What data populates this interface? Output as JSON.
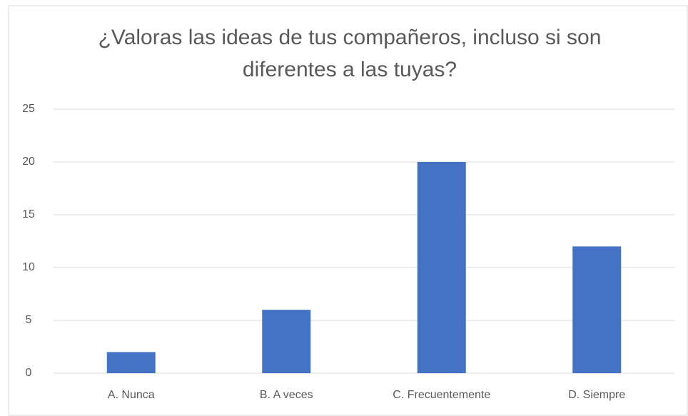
{
  "chart_data": {
    "type": "bar",
    "title": "¿Valoras las ideas de tus compañeros, incluso si son diferentes a las tuyas?",
    "categories": [
      "A. Nunca",
      "B. A veces",
      "C. Frecuentemente",
      "D. Siempre"
    ],
    "values": [
      2,
      6,
      20,
      12
    ],
    "color": "#4472c4",
    "ylim": [
      0,
      25
    ],
    "yticks": [
      0,
      5,
      10,
      15,
      20,
      25
    ],
    "grid": true
  }
}
